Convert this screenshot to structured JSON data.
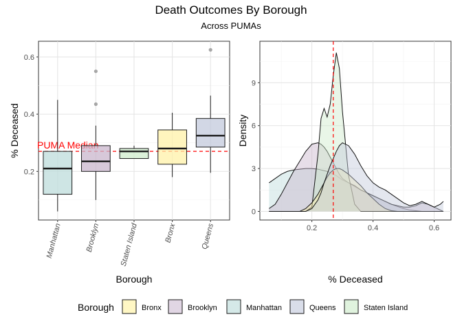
{
  "title": "Death Outcomes By Borough",
  "subtitle": "Across PUMAs",
  "chart_data": [
    {
      "type": "box",
      "xlabel": "Borough",
      "ylabel": "% Deceased",
      "ylim": [
        0.03,
        0.655
      ],
      "yticks": [
        0.2,
        0.4,
        0.6
      ],
      "grid": true,
      "reference_line": {
        "y": 0.27,
        "label": "PUMA Median",
        "color": "#ff0000",
        "style": "dashed"
      },
      "categories": [
        "Manhattan",
        "Brooklyn",
        "Staten Island",
        "Bronx",
        "Queens"
      ],
      "boxes": [
        {
          "name": "Manhattan",
          "min": 0.06,
          "q1": 0.12,
          "median": 0.21,
          "q3": 0.27,
          "max": 0.45,
          "outliers": []
        },
        {
          "name": "Brooklyn",
          "min": 0.1,
          "q1": 0.2,
          "median": 0.235,
          "q3": 0.29,
          "max": 0.36,
          "outliers": [
            0.435,
            0.55
          ]
        },
        {
          "name": "Staten Island",
          "min": 0.245,
          "q1": 0.245,
          "median": 0.27,
          "q3": 0.28,
          "max": 0.29,
          "outliers": []
        },
        {
          "name": "Bronx",
          "min": 0.18,
          "q1": 0.225,
          "median": 0.28,
          "q3": 0.345,
          "max": 0.405,
          "outliers": []
        },
        {
          "name": "Queens",
          "min": 0.195,
          "q1": 0.285,
          "median": 0.325,
          "q3": 0.385,
          "max": 0.465,
          "outliers": [
            0.625
          ]
        }
      ]
    },
    {
      "type": "density",
      "xlabel": "% Deceased",
      "ylabel": "Density",
      "xlim": [
        0.03,
        0.655
      ],
      "ylim": [
        -0.6,
        11.9
      ],
      "xticks": [
        0.2,
        0.4,
        0.6
      ],
      "yticks": [
        0,
        3,
        6,
        9
      ],
      "grid": true,
      "reference_line": {
        "x": 0.27,
        "color": "#ff0000",
        "style": "dashed"
      },
      "x": [
        0.06,
        0.08,
        0.1,
        0.12,
        0.14,
        0.16,
        0.18,
        0.2,
        0.22,
        0.23,
        0.24,
        0.25,
        0.26,
        0.27,
        0.28,
        0.29,
        0.3,
        0.32,
        0.34,
        0.36,
        0.38,
        0.4,
        0.42,
        0.44,
        0.46,
        0.48,
        0.5,
        0.52,
        0.54,
        0.56,
        0.58,
        0.6,
        0.62,
        0.63
      ],
      "series": [
        {
          "name": "Manhattan",
          "values": [
            2.0,
            2.3,
            2.6,
            2.8,
            2.9,
            2.95,
            3.0,
            3.0,
            2.95,
            2.9,
            2.85,
            2.8,
            2.7,
            2.6,
            2.5,
            2.35,
            2.2,
            2.0,
            1.75,
            1.5,
            1.3,
            1.1,
            0.9,
            0.7,
            0.5,
            0.35,
            0.2,
            0.1,
            0.05,
            0,
            0,
            0,
            0,
            0
          ]
        },
        {
          "name": "Brooklyn",
          "values": [
            0.2,
            0.5,
            1.2,
            2.0,
            2.8,
            3.5,
            4.2,
            4.7,
            4.8,
            4.7,
            4.5,
            4.2,
            3.8,
            3.4,
            3.0,
            2.6,
            2.3,
            2.0,
            1.8,
            1.5,
            1.3,
            1.1,
            0.9,
            0.7,
            0.5,
            0.4,
            0.3,
            0.3,
            0.4,
            0.6,
            0.5,
            0.3,
            0.1,
            0
          ]
        },
        {
          "name": "Staten Island",
          "values": [
            0,
            0,
            0,
            0,
            0,
            0,
            0,
            0.3,
            4.0,
            6.5,
            7.2,
            6.6,
            7.5,
            9.5,
            11.1,
            10.0,
            7.0,
            2.5,
            0.5,
            0,
            0,
            0,
            0,
            0,
            0,
            0,
            0,
            0,
            0,
            0,
            0,
            0,
            0,
            0
          ]
        },
        {
          "name": "Bronx",
          "values": [
            0,
            0,
            0,
            0,
            0,
            0,
            0.2,
            0.6,
            1.2,
            1.6,
            2.0,
            2.4,
            2.7,
            2.9,
            3.0,
            3.0,
            2.9,
            2.6,
            2.2,
            1.8,
            1.3,
            0.9,
            0.5,
            0.2,
            0.05,
            0,
            0,
            0,
            0,
            0,
            0,
            0,
            0,
            0
          ]
        },
        {
          "name": "Queens",
          "values": [
            0,
            0,
            0,
            0,
            0,
            0,
            0,
            0.2,
            0.8,
            1.3,
            2.0,
            2.6,
            3.2,
            3.7,
            4.2,
            4.6,
            4.8,
            4.6,
            4.0,
            3.2,
            2.5,
            2.0,
            1.7,
            1.5,
            1.2,
            0.9,
            0.6,
            0.4,
            0.5,
            0.7,
            0.5,
            0.3,
            0.5,
            0.7
          ]
        }
      ]
    }
  ],
  "legend": {
    "title": "Borough",
    "items": [
      {
        "label": "Bronx",
        "color": "#fff7c4"
      },
      {
        "label": "Brooklyn",
        "color": "#e1d6e4"
      },
      {
        "label": "Manhattan",
        "color": "#d5e9e8"
      },
      {
        "label": "Queens",
        "color": "#d9dde9"
      },
      {
        "label": "Staten Island",
        "color": "#e0f3de"
      }
    ]
  },
  "colors": {
    "Manhattan": "#bddcdb",
    "Brooklyn": "#c9b6cc",
    "Staten Island": "#cfeccc",
    "Bronx": "#fff2a8",
    "Queens": "#c3c9dc",
    "reference": "#ff0000"
  }
}
